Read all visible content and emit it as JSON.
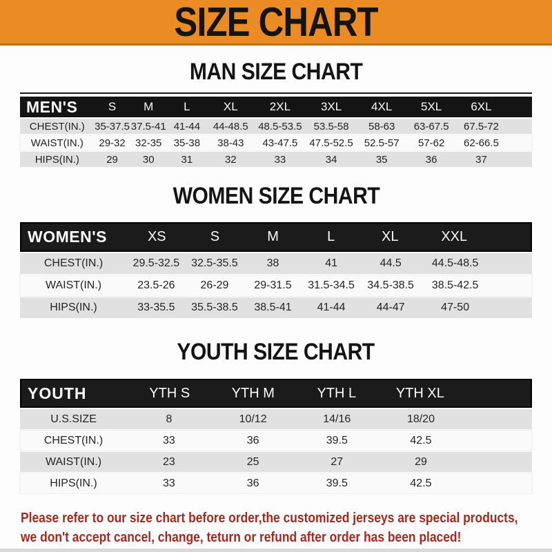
{
  "banner": {
    "title": "SIZE CHART"
  },
  "sections": {
    "men": {
      "title": "MAN SIZE CHART",
      "table": {
        "header": [
          "MEN'S",
          "S",
          "M",
          "L",
          "XL",
          "2XL",
          "3XL",
          "4XL",
          "5XL",
          "6XL"
        ],
        "rows": [
          [
            "CHEST(IN.)",
            "35-37.5",
            "37.5-41",
            "41-44",
            "44-48.5",
            "48.5-53.5",
            "53.5-58",
            "58-63",
            "63-67.5",
            "67.5-72"
          ],
          [
            "WAIST(IN.)",
            "29-32",
            "32-35",
            "35-38",
            "38-43",
            "43-47.5",
            "47.5-52.5",
            "52.5-57",
            "57-62",
            "62-66.5"
          ],
          [
            "HIPS(IN.)",
            "29",
            "30",
            "31",
            "32",
            "33",
            "34",
            "35",
            "36",
            "37"
          ]
        ]
      }
    },
    "women": {
      "title": "WOMEN SIZE CHART",
      "table": {
        "header": [
          "WOMEN'S",
          "XS",
          "S",
          "M",
          "L",
          "XL",
          "XXL"
        ],
        "rows": [
          [
            "CHEST(IN.)",
            "29.5-32.5",
            "32.5-35.5",
            "38",
            "41",
            "44.5",
            "44.5-48.5"
          ],
          [
            "WAIST(IN.)",
            "23.5-26",
            "26-29",
            "29-31.5",
            "31.5-34.5",
            "34.5-38.5",
            "38.5-42.5"
          ],
          [
            "HIPS(IN.)",
            "33-35.5",
            "35.5-38.5",
            "38.5-41",
            "41-44",
            "44-47",
            "47-50"
          ]
        ]
      }
    },
    "youth": {
      "title": "YOUTH SIZE CHART",
      "table": {
        "header": [
          "YOUTH",
          "YTH S",
          "YTH M",
          "YTH L",
          "YTH XL"
        ],
        "rows": [
          [
            "U.S.SIZE",
            "8",
            "10/12",
            "14/16",
            "18/20"
          ],
          [
            "CHEST(IN.)",
            "33",
            "36",
            "39.5",
            "42.5"
          ],
          [
            "WAIST(IN.)",
            "23",
            "25",
            "27",
            "29"
          ],
          [
            "HIPS(IN.)",
            "33",
            "36",
            "39.5",
            "42.5"
          ]
        ]
      }
    }
  },
  "footer": {
    "lines": [
      "Please refer to our size chart before order,the customized jerseys are special products,",
      "we don't accept cancel, change, teturn or refund after order has been placed!"
    ]
  },
  "colors": {
    "banner_bg": "#EB8B24",
    "banner_border": "#C06E16",
    "table_header_bg": "#141414",
    "alt_row_bg": "#E1E1E1",
    "disclaimer_text": "#A52921"
  }
}
